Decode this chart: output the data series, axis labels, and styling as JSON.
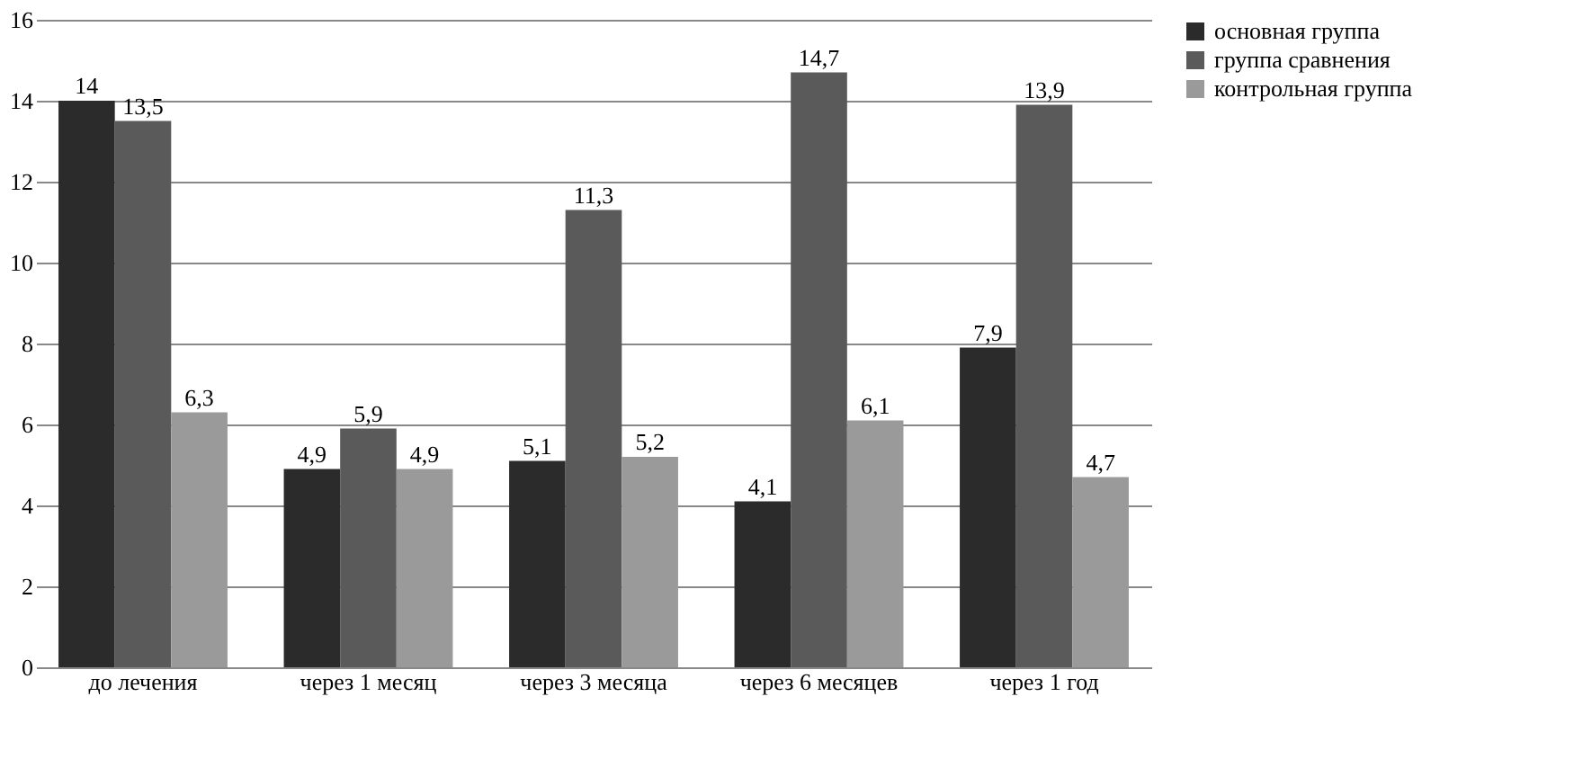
{
  "chart_data": {
    "type": "bar",
    "categories": [
      "до лечения",
      "через 1 месяц",
      "через 3 месяца",
      "через 6 месяцев",
      "через 1 год"
    ],
    "series": [
      {
        "name": "основная группа",
        "color": "#2b2b2b",
        "values": [
          14,
          4.9,
          5.1,
          4.1,
          7.9
        ],
        "value_labels": [
          "14",
          "4,9",
          "5,1",
          "4,1",
          "7,9"
        ]
      },
      {
        "name": "группа сравнения",
        "color": "#5a5a5a",
        "values": [
          13.5,
          5.9,
          11.3,
          14.7,
          13.9
        ],
        "value_labels": [
          "13,5",
          "5,9",
          "11,3",
          "14,7",
          "13,9"
        ]
      },
      {
        "name": "контрольная группа",
        "color": "#9a9a9a",
        "values": [
          6.3,
          4.9,
          5.2,
          6.1,
          4.7
        ],
        "value_labels": [
          "6,3",
          "4,9",
          "5,2",
          "6,1",
          "4,7"
        ]
      }
    ],
    "ylim": [
      0,
      16
    ],
    "yticks": [
      0,
      2,
      4,
      6,
      8,
      10,
      12,
      14,
      16
    ],
    "grid": "y",
    "legend": "right"
  }
}
